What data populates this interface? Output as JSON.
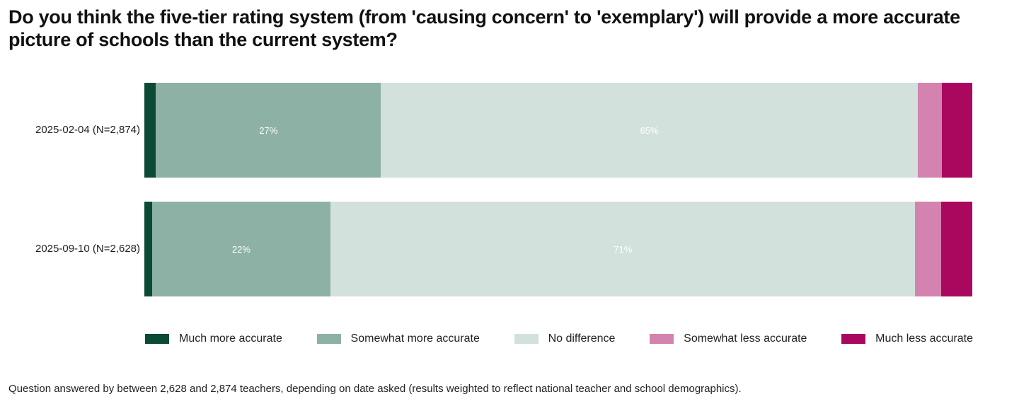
{
  "chart_data": {
    "type": "bar",
    "orientation": "horizontal-stacked-100",
    "title": "Do you think the five-tier rating system (from 'causing concern' to 'exemplary') will provide a more accurate picture of schools than the current system?",
    "categories": [
      "2025-02-04 (N=2,874)",
      "2025-09-10 (N=2,628)"
    ],
    "series": [
      {
        "name": "Much more accurate",
        "color": "#0b4a36",
        "values": [
          1.4,
          0.9
        ],
        "labels": [
          "",
          ""
        ]
      },
      {
        "name": "Somewhat more accurate",
        "color": "#8eb1a6",
        "values": [
          27.2,
          21.6
        ],
        "labels": [
          "27%",
          "22%"
        ]
      },
      {
        "name": "No difference",
        "color": "#d2e1dc",
        "values": [
          64.9,
          70.6
        ],
        "labels": [
          "65%",
          "71%"
        ]
      },
      {
        "name": "Somewhat less accurate",
        "color": "#d483b0",
        "values": [
          2.9,
          3.1
        ],
        "labels": [
          "",
          ""
        ]
      },
      {
        "name": "Much less accurate",
        "color": "#aa075f",
        "values": [
          3.7,
          3.8
        ],
        "labels": [
          "",
          ""
        ]
      }
    ],
    "xlim": [
      0,
      100
    ],
    "legend": "bottom",
    "grid": false
  },
  "footnote": "Question answered by between 2,628 and 2,874 teachers, depending on date asked (results weighted to reflect national teacher and school demographics)."
}
